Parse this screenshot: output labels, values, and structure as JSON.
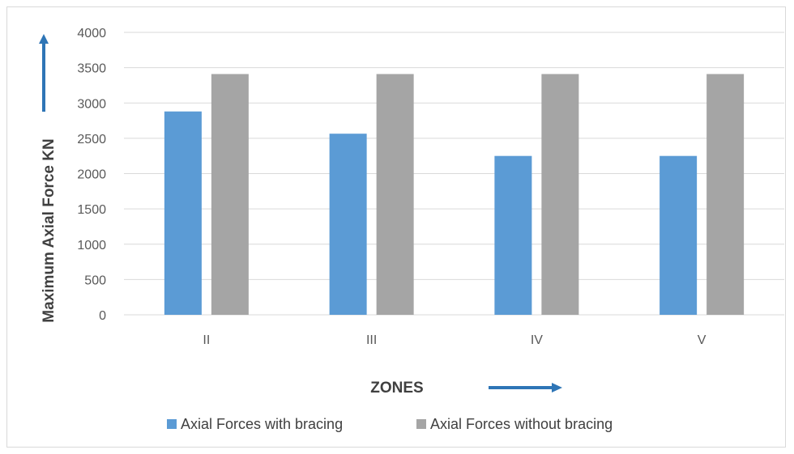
{
  "chart_data": {
    "type": "bar",
    "categories": [
      "II",
      "III",
      "IV",
      "V"
    ],
    "series": [
      {
        "name": "Axial Forces with bracing",
        "values": [
          2880,
          2565,
          2250,
          2250
        ],
        "color": "#5b9bd5"
      },
      {
        "name": "Axial Forces without bracing",
        "values": [
          3410,
          3410,
          3410,
          3410
        ],
        "color": "#a5a5a5"
      }
    ],
    "xlabel": "ZONES",
    "ylabel": "Maximum Axial Force KN",
    "ylim": [
      0,
      4000
    ],
    "yticks": [
      "0",
      "500",
      "1000",
      "1500",
      "2000",
      "2500",
      "3000",
      "3500",
      "4000"
    ],
    "grid": true,
    "legend_position": "bottom",
    "arrow_color": "#2e75b6"
  }
}
